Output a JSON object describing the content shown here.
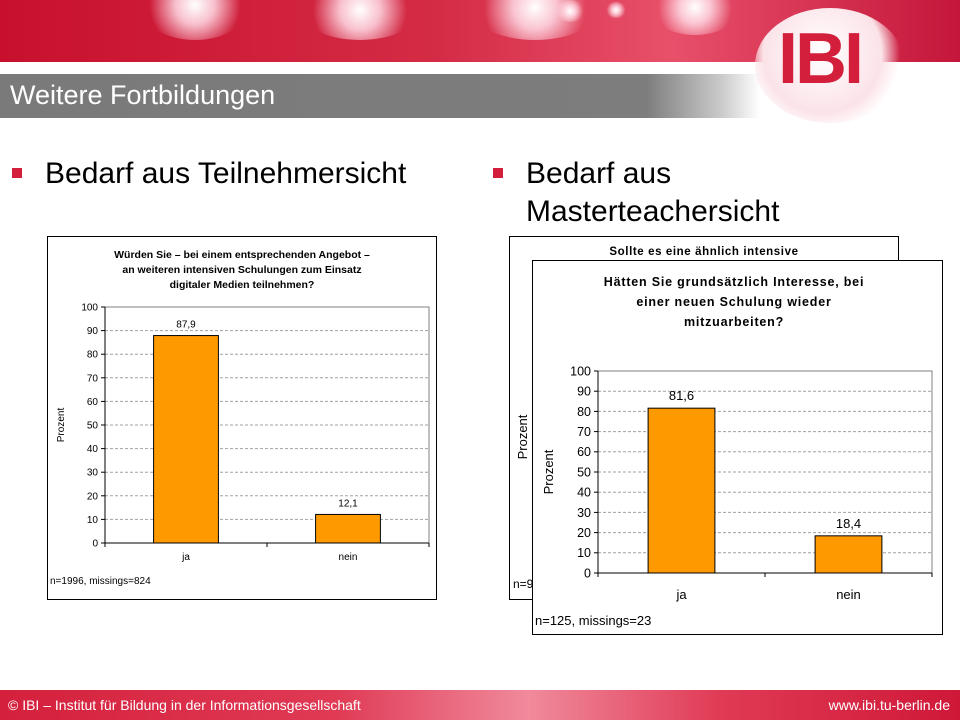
{
  "slide": {
    "title": "Weitere Fortbildungen",
    "logo_text": "IBI",
    "bullets": [
      {
        "text_lines": [
          "Bedarf aus Teilnehmersicht"
        ]
      },
      {
        "text_lines": [
          "Bedarf aus",
          "Masterteachersicht"
        ]
      }
    ],
    "footer_left": "© IBI – Institut für Bildung in der Informationsgesellschaft",
    "footer_right": "www.ibi.tu-berlin.de"
  },
  "colors": {
    "bar": "#ff9900",
    "brand_red": "#d31f3c",
    "title_gray": "#7b7b7b"
  },
  "chart_data": [
    {
      "type": "bar",
      "title_lines": [
        "Würden Sie – bei einem entsprechenden Angebot –",
        "an weiteren intensiven Schulungen zum Einsatz",
        "digitaler Medien teilnehmen?"
      ],
      "categories": [
        "ja",
        "nein"
      ],
      "values": [
        87.9,
        12.1
      ],
      "data_labels": [
        "87,9",
        "12,1"
      ],
      "ylabel": "Prozent",
      "ylim": [
        0,
        100
      ],
      "yticks": [
        0,
        10,
        20,
        30,
        40,
        50,
        60,
        70,
        80,
        90,
        100
      ],
      "grid": true,
      "note": "n=1996, missings=824"
    },
    {
      "type": "bar",
      "title_lines": [
        "Sollte es eine ähnlich intensive"
      ],
      "ylabel": "Prozent",
      "note": "n=9",
      "partially_hidden": true
    },
    {
      "type": "bar",
      "title_lines": [
        "Hätten Sie grundsätzlich Interesse, bei",
        "einer neuen Schulung wieder",
        "mitzuarbeiten?"
      ],
      "categories": [
        "ja",
        "nein"
      ],
      "values": [
        81.6,
        18.4
      ],
      "data_labels": [
        "81,6",
        "18,4"
      ],
      "ylabel": "Prozent",
      "ylim": [
        0,
        100
      ],
      "yticks": [
        0,
        10,
        20,
        30,
        40,
        50,
        60,
        70,
        80,
        90,
        100
      ],
      "grid": true,
      "note": "n=125, missings=23"
    }
  ]
}
